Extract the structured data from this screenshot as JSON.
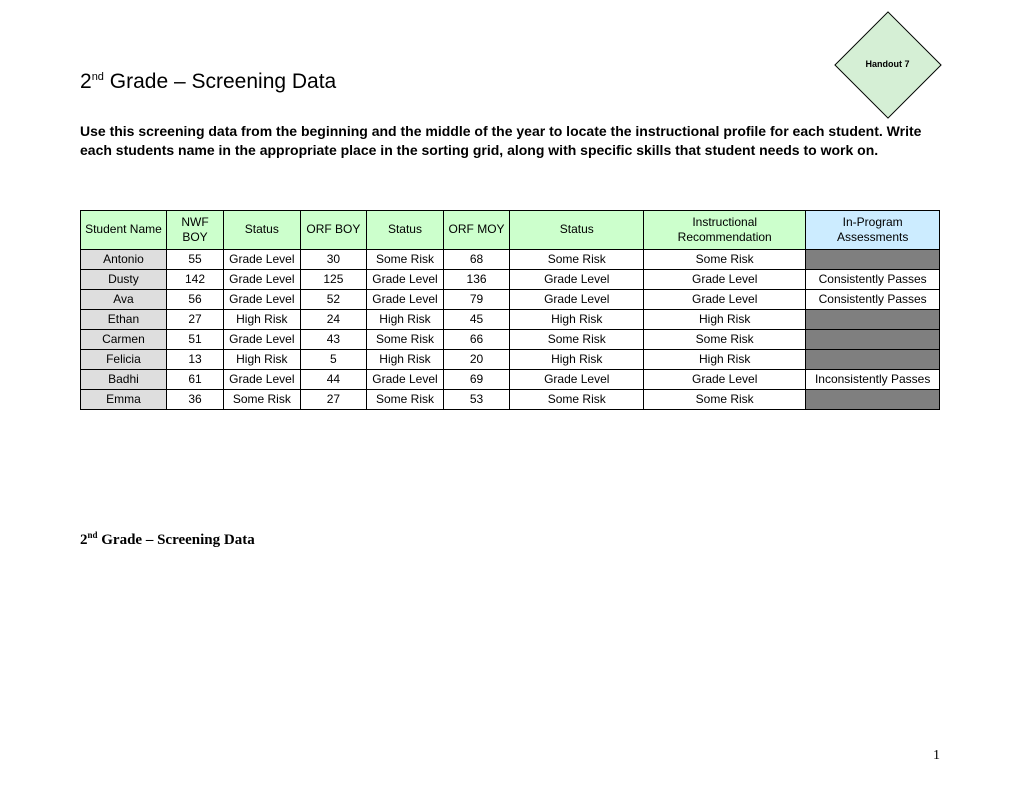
{
  "handout_label": "Handout 7",
  "title_prefix": "2",
  "title_super": "nd",
  "title_rest": " Grade – Screening Data",
  "intro": "Use this screening data from the beginning and the middle of the year to locate the instructional profile for each student.  Write each students name in the appropriate place in the sorting grid, along with specific skills that student needs to work on.",
  "headers": {
    "h0": "Student Name",
    "h1": "NWF BOY",
    "h2": "Status",
    "h3": "ORF BOY",
    "h4": "Status",
    "h5": "ORF MOY",
    "h6": "Status",
    "h7": "Instructional Recommendation",
    "h8": "In-Program Assessments"
  },
  "colors": {
    "header_green": "#ccffcc",
    "header_blue": "#ccecff",
    "name_bg": "#dedede",
    "shaded_bg": "#7f7f7f",
    "diamond_fill": "#d5efd5",
    "page_bg": "#ffffff"
  },
  "rows": [
    {
      "name": "Antonio",
      "nwf": "55",
      "s1": "Grade Level",
      "orf1": "30",
      "s2": "Some Risk",
      "orf2": "68",
      "s3": "Some Risk",
      "rec": "Some Risk",
      "assess": ""
    },
    {
      "name": "Dusty",
      "nwf": "142",
      "s1": "Grade Level",
      "orf1": "125",
      "s2": "Grade Level",
      "orf2": "136",
      "s3": "Grade Level",
      "rec": "Grade Level",
      "assess": "Consistently Passes"
    },
    {
      "name": "Ava",
      "nwf": "56",
      "s1": "Grade Level",
      "orf1": "52",
      "s2": "Grade Level",
      "orf2": "79",
      "s3": "Grade Level",
      "rec": "Grade Level",
      "assess": "Consistently Passes"
    },
    {
      "name": "Ethan",
      "nwf": "27",
      "s1": "High Risk",
      "orf1": "24",
      "s2": "High Risk",
      "orf2": "45",
      "s3": "High Risk",
      "rec": "High Risk",
      "assess": ""
    },
    {
      "name": "Carmen",
      "nwf": "51",
      "s1": "Grade Level",
      "orf1": "43",
      "s2": "Some Risk",
      "orf2": "66",
      "s3": "Some Risk",
      "rec": "Some Risk",
      "assess": ""
    },
    {
      "name": "Felicia",
      "nwf": "13",
      "s1": "High Risk",
      "orf1": "5",
      "s2": "High Risk",
      "orf2": "20",
      "s3": "High Risk",
      "rec": "High Risk",
      "assess": ""
    },
    {
      "name": "Badhi",
      "nwf": "61",
      "s1": "Grade Level",
      "orf1": "44",
      "s2": "Grade Level",
      "orf2": "69",
      "s3": "Grade Level",
      "rec": "Grade Level",
      "assess": "Inconsistently Passes"
    },
    {
      "name": "Emma",
      "nwf": "36",
      "s1": "Some Risk",
      "orf1": "27",
      "s2": "Some Risk",
      "orf2": "53",
      "s3": "Some Risk",
      "rec": "Some Risk",
      "assess": ""
    }
  ],
  "footer_title_prefix": "2",
  "footer_title_super": "nd",
  "footer_title_rest": " Grade – Screening Data",
  "page_number": "1"
}
